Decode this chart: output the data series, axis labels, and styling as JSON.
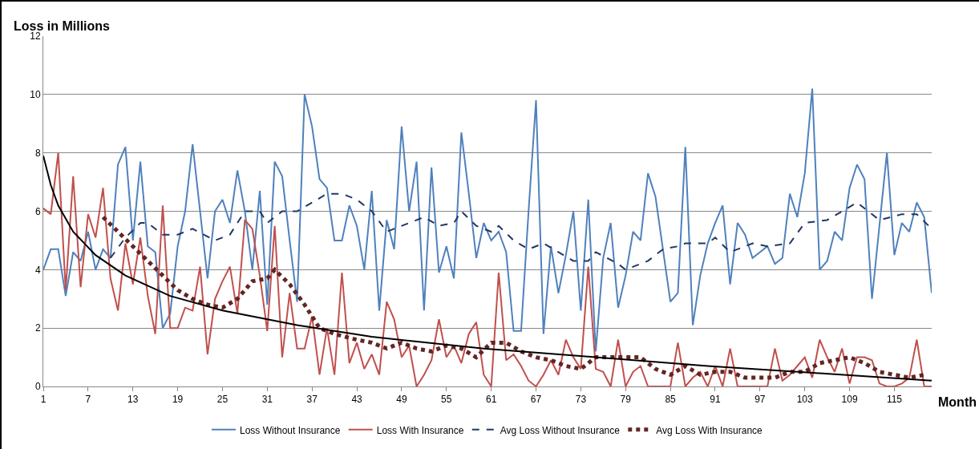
{
  "chart_data": {
    "type": "line",
    "ylabel": "Loss in Millions",
    "xlabel": "Month",
    "x": [
      1,
      2,
      3,
      4,
      5,
      6,
      7,
      8,
      9,
      10,
      11,
      12,
      13,
      14,
      15,
      16,
      17,
      18,
      19,
      20,
      21,
      22,
      23,
      24,
      25,
      26,
      27,
      28,
      29,
      30,
      31,
      32,
      33,
      34,
      35,
      36,
      37,
      38,
      39,
      40,
      41,
      42,
      43,
      44,
      45,
      46,
      47,
      48,
      49,
      50,
      51,
      52,
      53,
      54,
      55,
      56,
      57,
      58,
      59,
      60,
      61,
      62,
      63,
      64,
      65,
      66,
      67,
      68,
      69,
      70,
      71,
      72,
      73,
      74,
      75,
      76,
      77,
      78,
      79,
      80,
      81,
      82,
      83,
      84,
      85,
      86,
      87,
      88,
      89,
      90,
      91,
      92,
      93,
      94,
      95,
      96,
      97,
      98,
      99,
      100,
      101,
      102,
      103,
      104,
      105,
      106,
      107,
      108,
      109,
      110,
      111,
      112,
      113,
      114,
      115,
      116,
      117,
      118,
      119,
      120
    ],
    "xlim": [
      1,
      120
    ],
    "xticks": [
      1,
      7,
      13,
      19,
      25,
      31,
      37,
      43,
      49,
      55,
      61,
      67,
      73,
      79,
      85,
      91,
      97,
      103,
      109,
      115
    ],
    "ylim": [
      0,
      12
    ],
    "yticks": [
      0,
      2,
      4,
      6,
      8,
      10,
      12
    ],
    "grid": "y",
    "legend": "bottom",
    "marker": "none",
    "series": [
      {
        "name": "Loss Without Insurance",
        "color": "#4f81bd",
        "line_style": "solid",
        "values": [
          4.0,
          4.7,
          4.7,
          3.1,
          4.6,
          4.3,
          5.3,
          4.0,
          4.7,
          4.4,
          7.6,
          8.2,
          5.0,
          7.7,
          4.8,
          4.6,
          2.0,
          2.5,
          4.8,
          6.0,
          8.3,
          6.0,
          3.7,
          6.0,
          6.4,
          5.6,
          7.4,
          6.0,
          4.0,
          6.7,
          2.8,
          7.7,
          7.2,
          5.0,
          2.9,
          10.0,
          8.9,
          7.1,
          6.8,
          5.0,
          5.0,
          6.2,
          5.5,
          4.0,
          6.7,
          2.6,
          5.7,
          4.7,
          8.9,
          6.0,
          7.7,
          2.6,
          7.5,
          3.9,
          4.8,
          3.7,
          8.7,
          6.6,
          4.4,
          5.6,
          5.0,
          5.3,
          4.6,
          1.9,
          1.9,
          6.0,
          9.8,
          1.8,
          4.8,
          3.2,
          4.5,
          6.0,
          2.6,
          6.4,
          1.2,
          4.4,
          5.6,
          2.7,
          3.8,
          5.3,
          5.0,
          7.3,
          6.5,
          4.7,
          2.9,
          3.2,
          8.2,
          2.1,
          3.8,
          4.9,
          5.6,
          6.2,
          3.5,
          5.6,
          5.2,
          4.4,
          4.6,
          4.8,
          4.2,
          4.4,
          6.6,
          5.8,
          7.3,
          10.2,
          4.0,
          4.3,
          5.3,
          5.0,
          6.8,
          7.6,
          7.1,
          3.0,
          5.5,
          8.0,
          4.5,
          5.6,
          5.3,
          6.3,
          5.8,
          3.2
        ]
      },
      {
        "name": "Loss With Insurance",
        "color": "#c0504d",
        "line_style": "solid",
        "values": [
          6.1,
          5.9,
          8.0,
          3.3,
          7.2,
          3.4,
          5.9,
          5.1,
          6.8,
          3.7,
          2.6,
          4.9,
          3.5,
          5.1,
          3.1,
          1.8,
          6.2,
          2.0,
          2.0,
          2.7,
          2.6,
          4.1,
          1.1,
          3.0,
          3.6,
          4.1,
          2.5,
          5.7,
          5.4,
          3.8,
          1.9,
          5.5,
          1.0,
          3.2,
          1.3,
          1.3,
          2.4,
          0.4,
          2.0,
          0.4,
          3.9,
          0.8,
          1.5,
          0.6,
          1.1,
          0.4,
          2.9,
          2.3,
          1.0,
          1.4,
          0.0,
          0.4,
          0.9,
          2.3,
          1.0,
          1.4,
          0.8,
          1.8,
          2.2,
          0.4,
          0.0,
          3.9,
          0.9,
          1.1,
          0.7,
          0.2,
          0.0,
          0.4,
          0.9,
          0.4,
          1.6,
          1.0,
          0.6,
          4.1,
          0.6,
          0.5,
          0.0,
          1.6,
          0.0,
          0.5,
          0.7,
          0.0,
          0.0,
          0.0,
          0.0,
          1.5,
          0.0,
          0.3,
          0.5,
          0.0,
          0.7,
          0.0,
          1.3,
          0.0,
          0.0,
          0.0,
          0.0,
          0.0,
          1.3,
          0.2,
          0.4,
          0.7,
          1.0,
          0.3,
          1.6,
          1.0,
          0.5,
          1.3,
          0.1,
          1.0,
          1.0,
          0.9,
          0.1,
          0.0,
          0.0,
          0.1,
          0.3,
          1.6,
          0.0,
          0.0
        ]
      },
      {
        "name": "Avg Loss Without Insurance",
        "color": "#1f3864",
        "line_style": "dashed",
        "x": [
          10,
          12,
          14,
          15,
          17,
          19,
          21,
          24,
          26,
          28,
          30,
          31,
          33,
          35,
          37,
          39,
          41,
          43,
          45,
          47,
          50,
          52,
          54,
          56,
          57,
          59,
          61,
          62,
          64,
          66,
          68,
          70,
          72,
          74,
          75,
          78,
          79,
          82,
          84,
          86,
          87,
          90,
          91,
          93,
          96,
          98,
          101,
          103,
          106,
          110,
          113,
          116,
          118,
          120
        ],
        "values": [
          4.4,
          5.1,
          5.6,
          5.6,
          5.2,
          5.2,
          5.4,
          5.0,
          5.2,
          6.0,
          6.0,
          5.6,
          6.0,
          6.0,
          6.3,
          6.6,
          6.6,
          6.4,
          6.0,
          5.3,
          5.6,
          5.8,
          5.5,
          5.6,
          6.0,
          5.5,
          5.3,
          5.5,
          5.0,
          4.7,
          4.9,
          4.6,
          4.3,
          4.3,
          4.6,
          4.2,
          4.0,
          4.3,
          4.7,
          4.8,
          4.9,
          4.9,
          5.1,
          4.6,
          4.9,
          4.8,
          4.9,
          5.6,
          5.7,
          6.3,
          5.7,
          5.9,
          5.9,
          5.4
        ]
      },
      {
        "name": "Avg Loss With Insurance",
        "color": "#632523",
        "line_style": "dotted",
        "x": [
          9,
          11,
          13,
          15,
          17,
          19,
          21,
          23,
          25,
          27,
          29,
          31,
          32,
          34,
          36,
          38,
          40,
          43,
          45,
          47,
          49,
          51,
          53,
          55,
          57,
          59,
          61,
          63,
          65,
          67,
          69,
          71,
          73,
          75,
          77,
          79,
          81,
          83,
          85,
          87,
          89,
          91,
          93,
          95,
          97,
          99,
          101,
          103,
          105,
          107,
          109,
          111,
          113,
          115,
          117,
          119
        ],
        "values": [
          5.8,
          5.3,
          4.8,
          4.3,
          3.8,
          3.3,
          3.0,
          2.8,
          2.7,
          3.0,
          3.6,
          3.7,
          4.0,
          3.5,
          2.8,
          2.0,
          1.8,
          1.6,
          1.5,
          1.3,
          1.5,
          1.3,
          1.2,
          1.4,
          1.3,
          1.0,
          1.5,
          1.5,
          1.2,
          1.0,
          0.9,
          0.7,
          0.6,
          1.0,
          1.0,
          1.0,
          1.0,
          0.6,
          0.4,
          0.7,
          0.4,
          0.5,
          0.5,
          0.3,
          0.3,
          0.3,
          0.5,
          0.5,
          0.8,
          0.9,
          1.0,
          0.8,
          0.5,
          0.4,
          0.3,
          0.4
        ]
      },
      {
        "type": "line",
        "color": "#000000",
        "line_style": "solid",
        "x": [
          1,
          2,
          3,
          5,
          8,
          12,
          18,
          25,
          35,
          45,
          60,
          75,
          90,
          105,
          120
        ],
        "values": [
          7.9,
          6.9,
          6.2,
          5.3,
          4.5,
          3.8,
          3.1,
          2.6,
          2.1,
          1.7,
          1.3,
          1.0,
          0.7,
          0.45,
          0.2
        ]
      }
    ]
  }
}
